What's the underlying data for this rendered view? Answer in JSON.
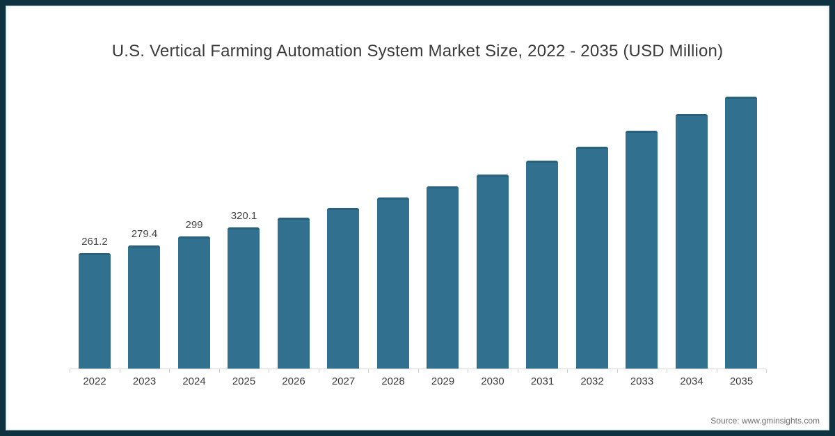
{
  "title": "U.S. Vertical Farming Automation System Market Size, 2022 - 2035 (USD Million)",
  "source_label": "Source: www.gminsights.com",
  "chart_data": {
    "type": "bar",
    "title": "U.S. Vertical Farming Automation System Market Size, 2022 - 2035 (USD Million)",
    "categories": [
      "2022",
      "2023",
      "2024",
      "2025",
      "2026",
      "2027",
      "2028",
      "2029",
      "2030",
      "2031",
      "2032",
      "2033",
      "2034",
      "2035"
    ],
    "values": [
      261.2,
      279.4,
      299,
      320.1,
      341,
      364,
      388,
      413,
      440,
      471,
      503,
      538,
      576,
      615
    ],
    "shown_value_labels": [
      "261.2",
      "279.4",
      "299",
      "320.1",
      "",
      "",
      "",
      "",
      "",
      "",
      "",
      "",
      "",
      ""
    ],
    "xlabel": "",
    "ylabel": "",
    "ylim": [
      0,
      660
    ],
    "grid": false,
    "legend": false,
    "bar_color": "#31708f",
    "source": "Source: www.gminsights.com"
  }
}
